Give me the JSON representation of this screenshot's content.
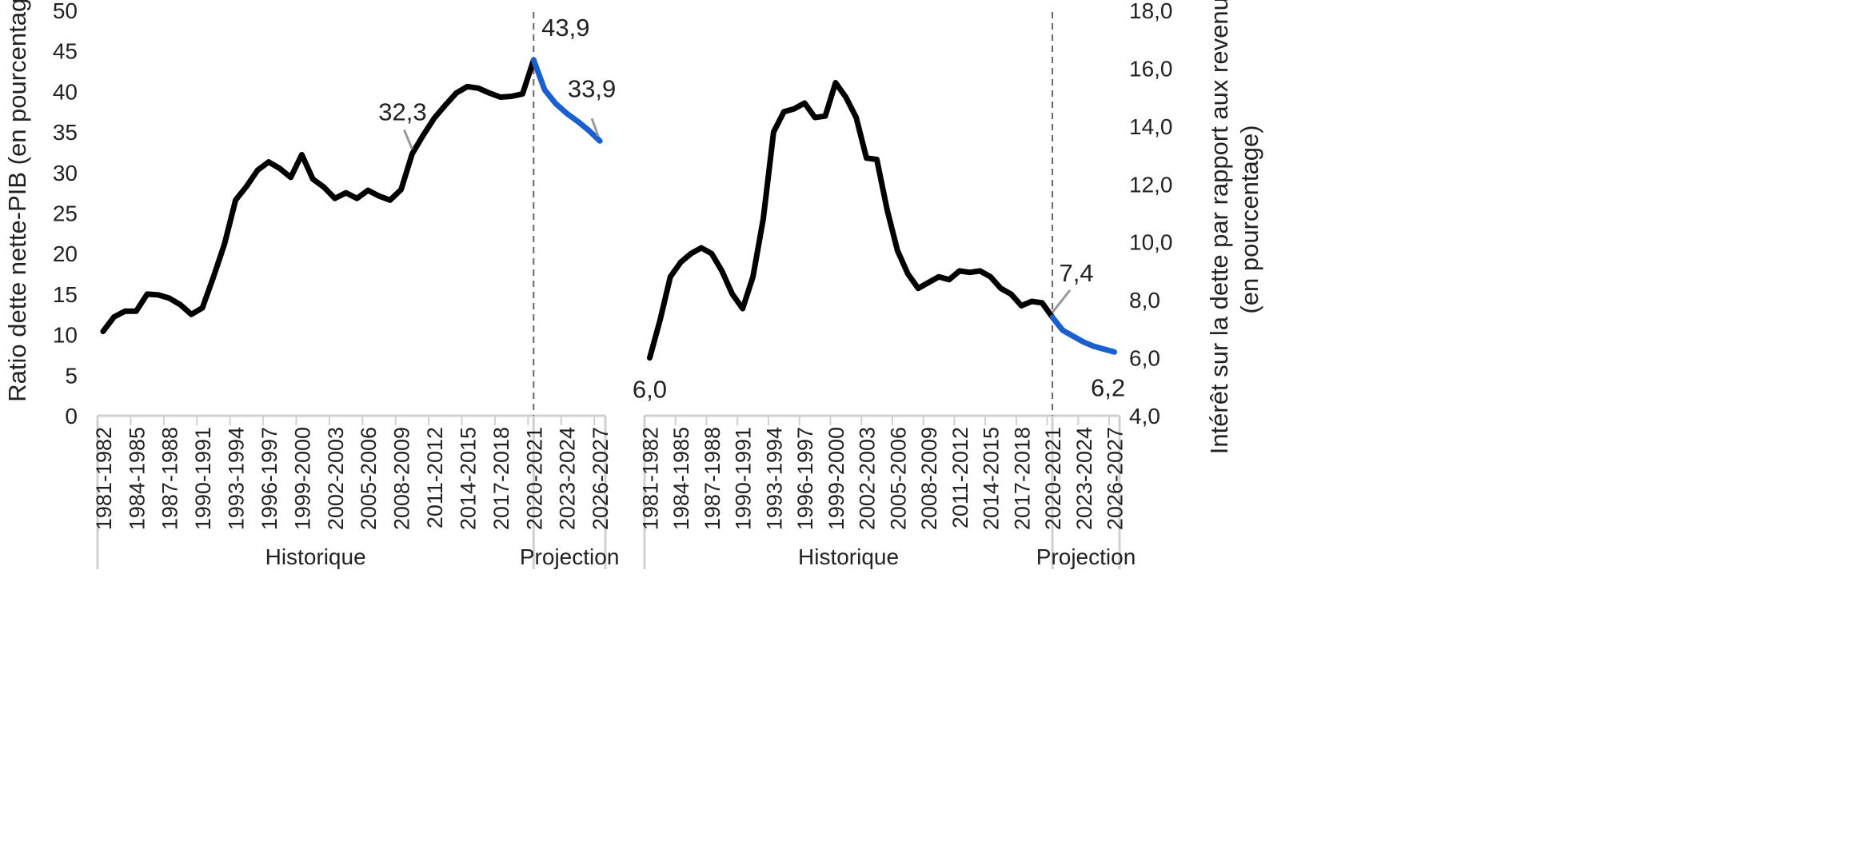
{
  "colors": {
    "historical": "#000000",
    "projection": "#1a5fd0",
    "axis": "#d0d0d0",
    "divider": "#666666",
    "leader": "#999999",
    "text": "#222222"
  },
  "chart_data": [
    {
      "type": "line",
      "ylabel": "Ratio dette nette-PIB (en pourcentage)",
      "ylim": [
        0,
        50
      ],
      "yticks": [
        "0",
        "5",
        "10",
        "15",
        "20",
        "25",
        "30",
        "35",
        "40",
        "45",
        "50"
      ],
      "y_axis_side": "left",
      "grid": false,
      "x": [
        "1981-1982",
        "1982-1983",
        "1983-1984",
        "1984-1985",
        "1985-1986",
        "1986-1987",
        "1987-1988",
        "1988-1989",
        "1989-1990",
        "1990-1991",
        "1991-1992",
        "1992-1993",
        "1993-1994",
        "1994-1995",
        "1995-1996",
        "1996-1997",
        "1997-1998",
        "1998-1999",
        "1999-2000",
        "2000-2001",
        "2001-2002",
        "2002-2003",
        "2003-2004",
        "2004-2005",
        "2005-2006",
        "2006-2007",
        "2007-2008",
        "2008-2009",
        "2009-2010",
        "2010-2011",
        "2011-2012",
        "2012-2013",
        "2013-2014",
        "2014-2015",
        "2015-2016",
        "2016-2017",
        "2017-2018",
        "2018-2019",
        "2019-2020",
        "2020-2021",
        "2021-2022",
        "2022-2023",
        "2023-2024",
        "2024-2025",
        "2025-2026",
        "2026-2027"
      ],
      "xticks": [
        "1981-1982",
        "1984-1985",
        "1987-1988",
        "1990-1991",
        "1993-1994",
        "1996-1997",
        "1999-2000",
        "2002-2003",
        "2005-2006",
        "2008-2009",
        "2011-2012",
        "2014-2015",
        "2017-2018",
        "2020-2021",
        "2023-2024",
        "2026-2027"
      ],
      "historical": [
        10.4,
        12.2,
        12.9,
        12.9,
        15.0,
        14.9,
        14.5,
        13.7,
        12.5,
        13.3,
        17.1,
        21.2,
        26.6,
        28.3,
        30.3,
        31.3,
        30.5,
        29.4,
        32.2,
        29.2,
        28.2,
        26.8,
        27.5,
        26.8,
        27.8,
        27.1,
        26.6,
        27.9,
        32.3,
        34.6,
        36.7,
        38.3,
        39.8,
        40.6,
        40.4,
        39.8,
        39.3,
        39.4,
        39.7,
        43.9
      ],
      "projection_x": [
        "2020-2021",
        "2021-2022",
        "2022-2023",
        "2023-2024",
        "2024-2025",
        "2025-2026",
        "2026-2027"
      ],
      "projection": [
        43.9,
        40.2,
        38.5,
        37.3,
        36.3,
        35.2,
        33.9
      ],
      "divider_after": "2020-2021",
      "annotations": [
        {
          "label": "32,3",
          "at": "2009-2010",
          "value": 32.3
        },
        {
          "label": "43,9",
          "at": "2020-2021",
          "value": 43.9
        },
        {
          "label": "33,9",
          "at": "2026-2027",
          "value": 33.9
        }
      ],
      "period_labels": [
        "Historique",
        "Projection"
      ]
    },
    {
      "type": "line",
      "ylabel": "Intérêt sur la dette par rapport aux revenus (en pourcentage)",
      "ylim": [
        4.0,
        18.0
      ],
      "yticks": [
        "4,0",
        "6,0",
        "8,0",
        "10,0",
        "12,0",
        "14,0",
        "16,0",
        "18,0"
      ],
      "y_axis_side": "right",
      "grid": false,
      "x": [
        "1981-1982",
        "1982-1983",
        "1983-1984",
        "1984-1985",
        "1985-1986",
        "1986-1987",
        "1987-1988",
        "1988-1989",
        "1989-1990",
        "1990-1991",
        "1991-1992",
        "1992-1993",
        "1993-1994",
        "1994-1995",
        "1995-1996",
        "1996-1997",
        "1997-1998",
        "1998-1999",
        "1999-2000",
        "2000-2001",
        "2001-2002",
        "2002-2003",
        "2003-2004",
        "2004-2005",
        "2005-2006",
        "2006-2007",
        "2007-2008",
        "2008-2009",
        "2009-2010",
        "2010-2011",
        "2011-2012",
        "2012-2013",
        "2013-2014",
        "2014-2015",
        "2015-2016",
        "2016-2017",
        "2017-2018",
        "2018-2019",
        "2019-2020",
        "2020-2021",
        "2021-2022",
        "2022-2023",
        "2023-2024",
        "2024-2025",
        "2025-2026",
        "2026-2027"
      ],
      "xticks": [
        "1981-1982",
        "1984-1985",
        "1987-1988",
        "1990-1991",
        "1993-1994",
        "1996-1997",
        "1999-2000",
        "2002-2003",
        "2005-2006",
        "2008-2009",
        "2011-2012",
        "2014-2015",
        "2017-2018",
        "2020-2021",
        "2023-2024",
        "2026-2027"
      ],
      "historical": [
        6.0,
        7.3,
        8.8,
        9.3,
        9.6,
        9.8,
        9.6,
        9.0,
        8.2,
        7.7,
        8.8,
        10.8,
        13.8,
        14.5,
        14.6,
        14.8,
        14.3,
        14.35,
        15.5,
        15.0,
        14.3,
        12.9,
        12.85,
        11.1,
        9.7,
        8.9,
        8.4,
        8.6,
        8.8,
        8.7,
        9.0,
        8.95,
        9.0,
        8.8,
        8.4,
        8.2,
        7.8,
        7.95,
        7.9,
        7.4
      ],
      "projection_x": [
        "2020-2021",
        "2021-2022",
        "2022-2023",
        "2023-2024",
        "2024-2025",
        "2025-2026",
        "2026-2027"
      ],
      "projection": [
        7.4,
        6.95,
        6.75,
        6.55,
        6.4,
        6.3,
        6.2
      ],
      "divider_after": "2020-2021",
      "annotations": [
        {
          "label": "6,0",
          "at": "1981-1982",
          "value": 6.0
        },
        {
          "label": "7,4",
          "at": "2020-2021",
          "value": 7.4
        },
        {
          "label": "6,2",
          "at": "2026-2027",
          "value": 6.2
        }
      ],
      "period_labels": [
        "Historique",
        "Projection"
      ]
    }
  ]
}
